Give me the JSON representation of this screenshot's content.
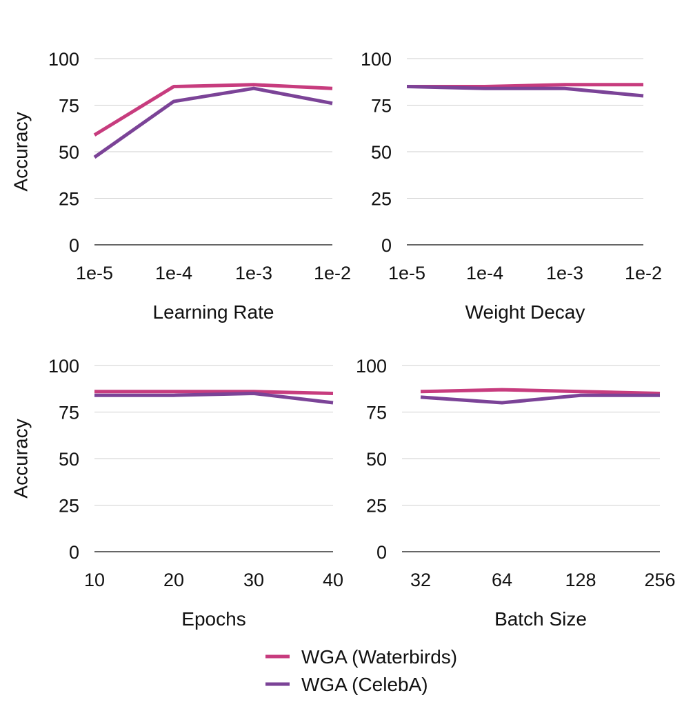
{
  "colors": {
    "waterbirds": "#C73C7E",
    "celeba": "#7B4397"
  },
  "legend": [
    {
      "key": "waterbirds",
      "label": "WGA (Waterbirds)"
    },
    {
      "key": "celeba",
      "label": "WGA (CelebA)"
    }
  ],
  "chart_data": [
    {
      "type": "line",
      "title": "",
      "xlabel": "Learning Rate",
      "ylabel": "Accuracy",
      "categories": [
        "1e-5",
        "1e-4",
        "1e-3",
        "1e-2"
      ],
      "ylim": [
        0,
        100
      ],
      "yticks": [
        0,
        25,
        50,
        75,
        100
      ],
      "series": [
        {
          "name": "WGA (Waterbirds)",
          "key": "waterbirds",
          "values": [
            59,
            85,
            86,
            84
          ]
        },
        {
          "name": "WGA (CelebA)",
          "key": "celeba",
          "values": [
            47,
            77,
            84,
            76
          ]
        }
      ]
    },
    {
      "type": "line",
      "title": "",
      "xlabel": "Weight Decay",
      "ylabel": "",
      "categories": [
        "1e-5",
        "1e-4",
        "1e-3",
        "1e-2"
      ],
      "ylim": [
        0,
        100
      ],
      "yticks": [
        0,
        25,
        50,
        75,
        100
      ],
      "series": [
        {
          "name": "WGA (Waterbirds)",
          "key": "waterbirds",
          "values": [
            85,
            85,
            86,
            86
          ]
        },
        {
          "name": "WGA (CelebA)",
          "key": "celeba",
          "values": [
            85,
            84,
            84,
            80
          ]
        }
      ]
    },
    {
      "type": "line",
      "title": "",
      "xlabel": "Epochs",
      "ylabel": "Accuracy",
      "categories": [
        "10",
        "20",
        "30",
        "40"
      ],
      "ylim": [
        0,
        100
      ],
      "yticks": [
        0,
        25,
        50,
        75,
        100
      ],
      "series": [
        {
          "name": "WGA (Waterbirds)",
          "key": "waterbirds",
          "values": [
            86,
            86,
            86,
            85
          ]
        },
        {
          "name": "WGA (CelebA)",
          "key": "celeba",
          "values": [
            84,
            84,
            85,
            80
          ]
        }
      ]
    },
    {
      "type": "line",
      "title": "",
      "xlabel": "Batch Size",
      "ylabel": "",
      "categories": [
        "32",
        "64",
        "128",
        "256"
      ],
      "ylim": [
        0,
        100
      ],
      "yticks": [
        0,
        25,
        50,
        75,
        100
      ],
      "series": [
        {
          "name": "WGA (Waterbirds)",
          "key": "waterbirds",
          "values": [
            86,
            87,
            86,
            85
          ]
        },
        {
          "name": "WGA (CelebA)",
          "key": "celeba",
          "values": [
            83,
            80,
            84,
            84
          ]
        }
      ]
    }
  ]
}
